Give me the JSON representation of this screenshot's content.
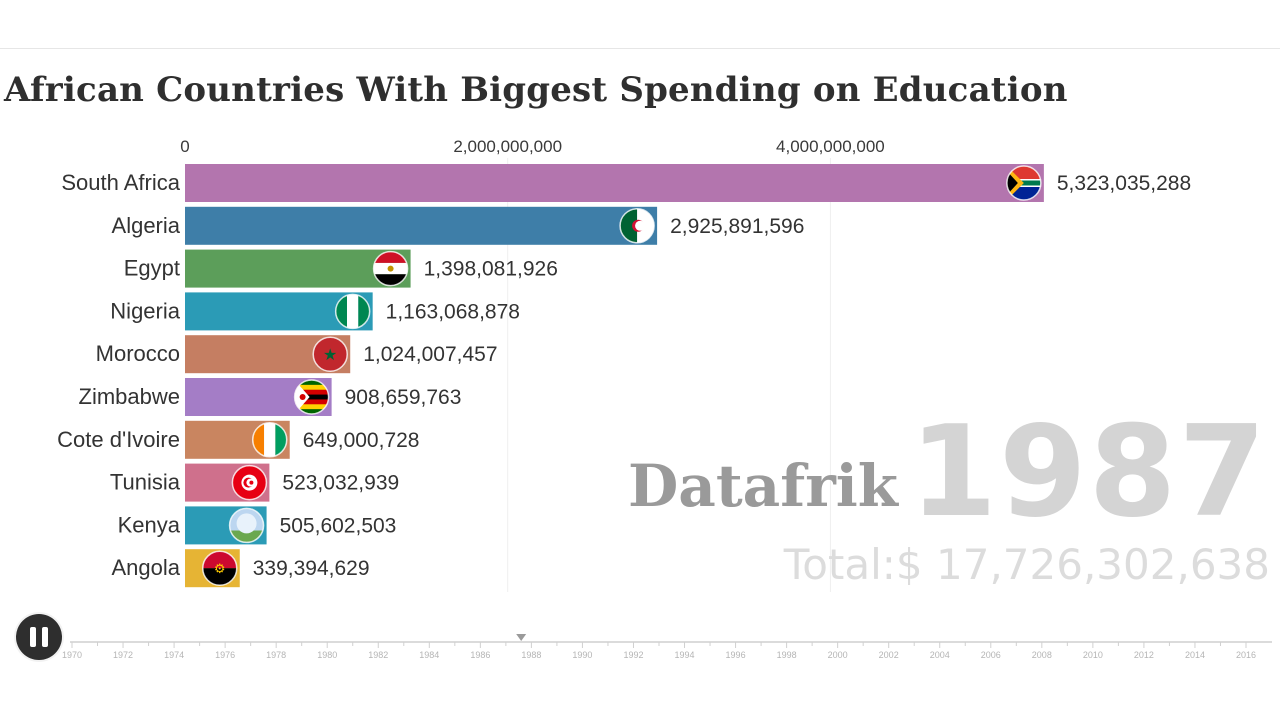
{
  "page": {
    "title": "African Countries With Biggest Spending on Education",
    "watermark": "Datafrik",
    "year": "1987",
    "total_label": "Total:$ 17,726,302,638"
  },
  "player": {
    "button_icon": "pause-icon",
    "state": "playing"
  },
  "timeline": {
    "years": [
      "1970",
      "1972",
      "1974",
      "1976",
      "1978",
      "1980",
      "1982",
      "1984",
      "1986",
      "1988",
      "1990",
      "1992",
      "1994",
      "1996",
      "1998",
      "2000",
      "2002",
      "2004",
      "2006",
      "2008",
      "2010",
      "2012",
      "2014",
      "2016"
    ],
    "start_year": 1970,
    "end_year": 2016,
    "current_year": 1987.6
  },
  "chart_data": {
    "type": "bar",
    "orientation": "horizontal",
    "title": "African Countries With Biggest Spending on Education",
    "categories": [
      "South Africa",
      "Algeria",
      "Egypt",
      "Nigeria",
      "Morocco",
      "Zimbabwe",
      "Cote d'Ivoire",
      "Tunisia",
      "Kenya",
      "Angola"
    ],
    "values": [
      5323035288,
      2925891596,
      1398081926,
      1163068878,
      1024007457,
      908659763,
      649000728,
      523032939,
      505602503,
      339394629
    ],
    "value_labels": [
      "5,323,035,288",
      "2,925,891,596",
      "1,398,081,926",
      "1,163,068,878",
      "1,024,007,457",
      "908,659,763",
      "649,000,728",
      "523,032,939",
      "505,602,503",
      "339,394,629"
    ],
    "colors": [
      "#b375ae",
      "#3e7ea8",
      "#5c9e5a",
      "#2b9bb6",
      "#c57e62",
      "#a47dc6",
      "#c98560",
      "#cf708c",
      "#2b9bb6",
      "#e6b434"
    ],
    "flag_icons": [
      "south-africa-flag-icon",
      "algeria-flag-icon",
      "egypt-flag-icon",
      "nigeria-flag-icon",
      "morocco-flag-icon",
      "zimbabwe-flag-icon",
      "cote-divoire-flag-icon",
      "tunisia-flag-icon",
      "kenya-flag-icon",
      "angola-flag-icon"
    ],
    "x_ticks": [
      0,
      2000000000,
      4000000000
    ],
    "x_tick_labels": [
      "0",
      "2,000,000,000",
      "4,000,000,000"
    ],
    "xlim": [
      0,
      5330000000
    ],
    "grid": true
  }
}
